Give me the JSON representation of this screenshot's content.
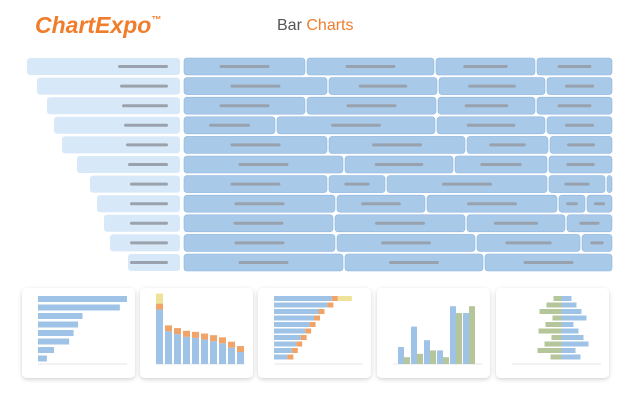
{
  "header": {
    "logo": "ChartExpo",
    "trademark": "™",
    "title_prefix": "Bar",
    "title_highlight": "Charts"
  }
}
